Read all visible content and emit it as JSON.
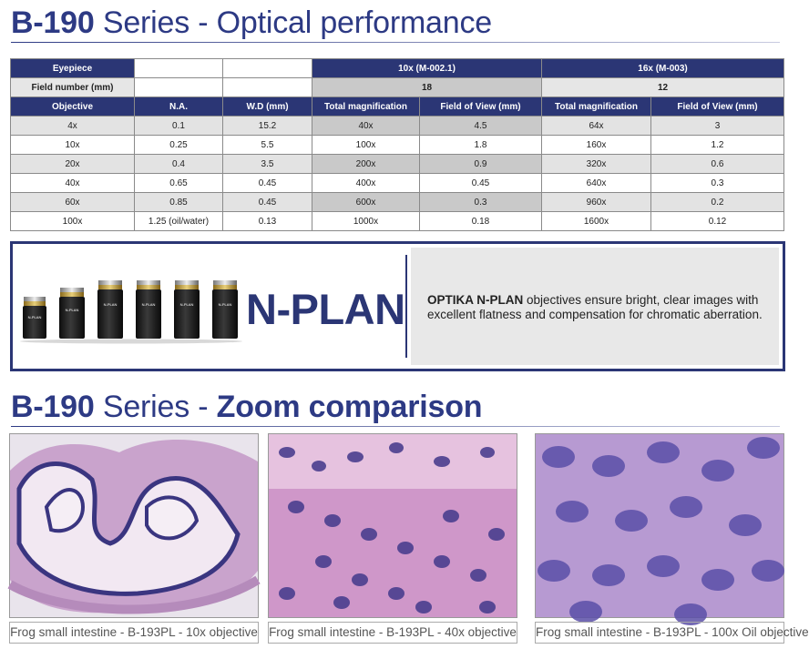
{
  "section1": {
    "prefix": "B-190",
    "middle": " Series - ",
    "suffix": "Optical performance"
  },
  "table": {
    "eyepiece_label": "Eyepiece",
    "fieldnum_label": "Field number (mm)",
    "eyepiece_10x": "10x (M-002.1)",
    "eyepiece_16x": "16x (M-003)",
    "fieldnum_10x": "18",
    "fieldnum_16x": "12",
    "headers": [
      "Objective",
      "N.A.",
      "W.D (mm)",
      "Total magnification",
      "Field of View (mm)",
      "Total magnification",
      "Field of View (mm)"
    ],
    "rows": [
      [
        "4x",
        "0.1",
        "15.2",
        "40x",
        "4.5",
        "64x",
        "3"
      ],
      [
        "10x",
        "0.25",
        "5.5",
        "100x",
        "1.8",
        "160x",
        "1.2"
      ],
      [
        "20x",
        "0.4",
        "3.5",
        "200x",
        "0.9",
        "320x",
        "0.6"
      ],
      [
        "40x",
        "0.65",
        "0.45",
        "400x",
        "0.45",
        "640x",
        "0.3"
      ],
      [
        "60x",
        "0.85",
        "0.45",
        "600x",
        "0.3",
        "960x",
        "0.2"
      ],
      [
        "100x",
        "1.25 (oil/water)",
        "0.13",
        "1000x",
        "0.18",
        "1600x",
        "0.12"
      ]
    ]
  },
  "panel": {
    "logo": "N-PLAN",
    "brand": "OPTIKA N-PLAN",
    "text": " objectives ensure bright, clear images with excellent flatness and compensation for chromatic aberration.",
    "objective_labels": [
      "N-PLAN 4x",
      "N-PLAN 10x",
      "N-PLAN 20x",
      "N-PLAN 40x",
      "N-PLAN 60x",
      "N-PLAN 100x"
    ]
  },
  "section2": {
    "prefix": "B-190",
    "middle": " Series - ",
    "suffix": "Zoom comparison"
  },
  "captions": [
    "Frog small intestine - B-193PL - 10x objective",
    "Frog small intestine - B-193PL - 40x objective",
    "Frog small intestine - B-193PL - 100x Oil objective"
  ],
  "colors": {
    "brand_blue": "#2b3675",
    "header_bg": "#2b3675",
    "tissue_pink": "#d9a6c8",
    "nuclei_purple": "#4b3f8f"
  }
}
